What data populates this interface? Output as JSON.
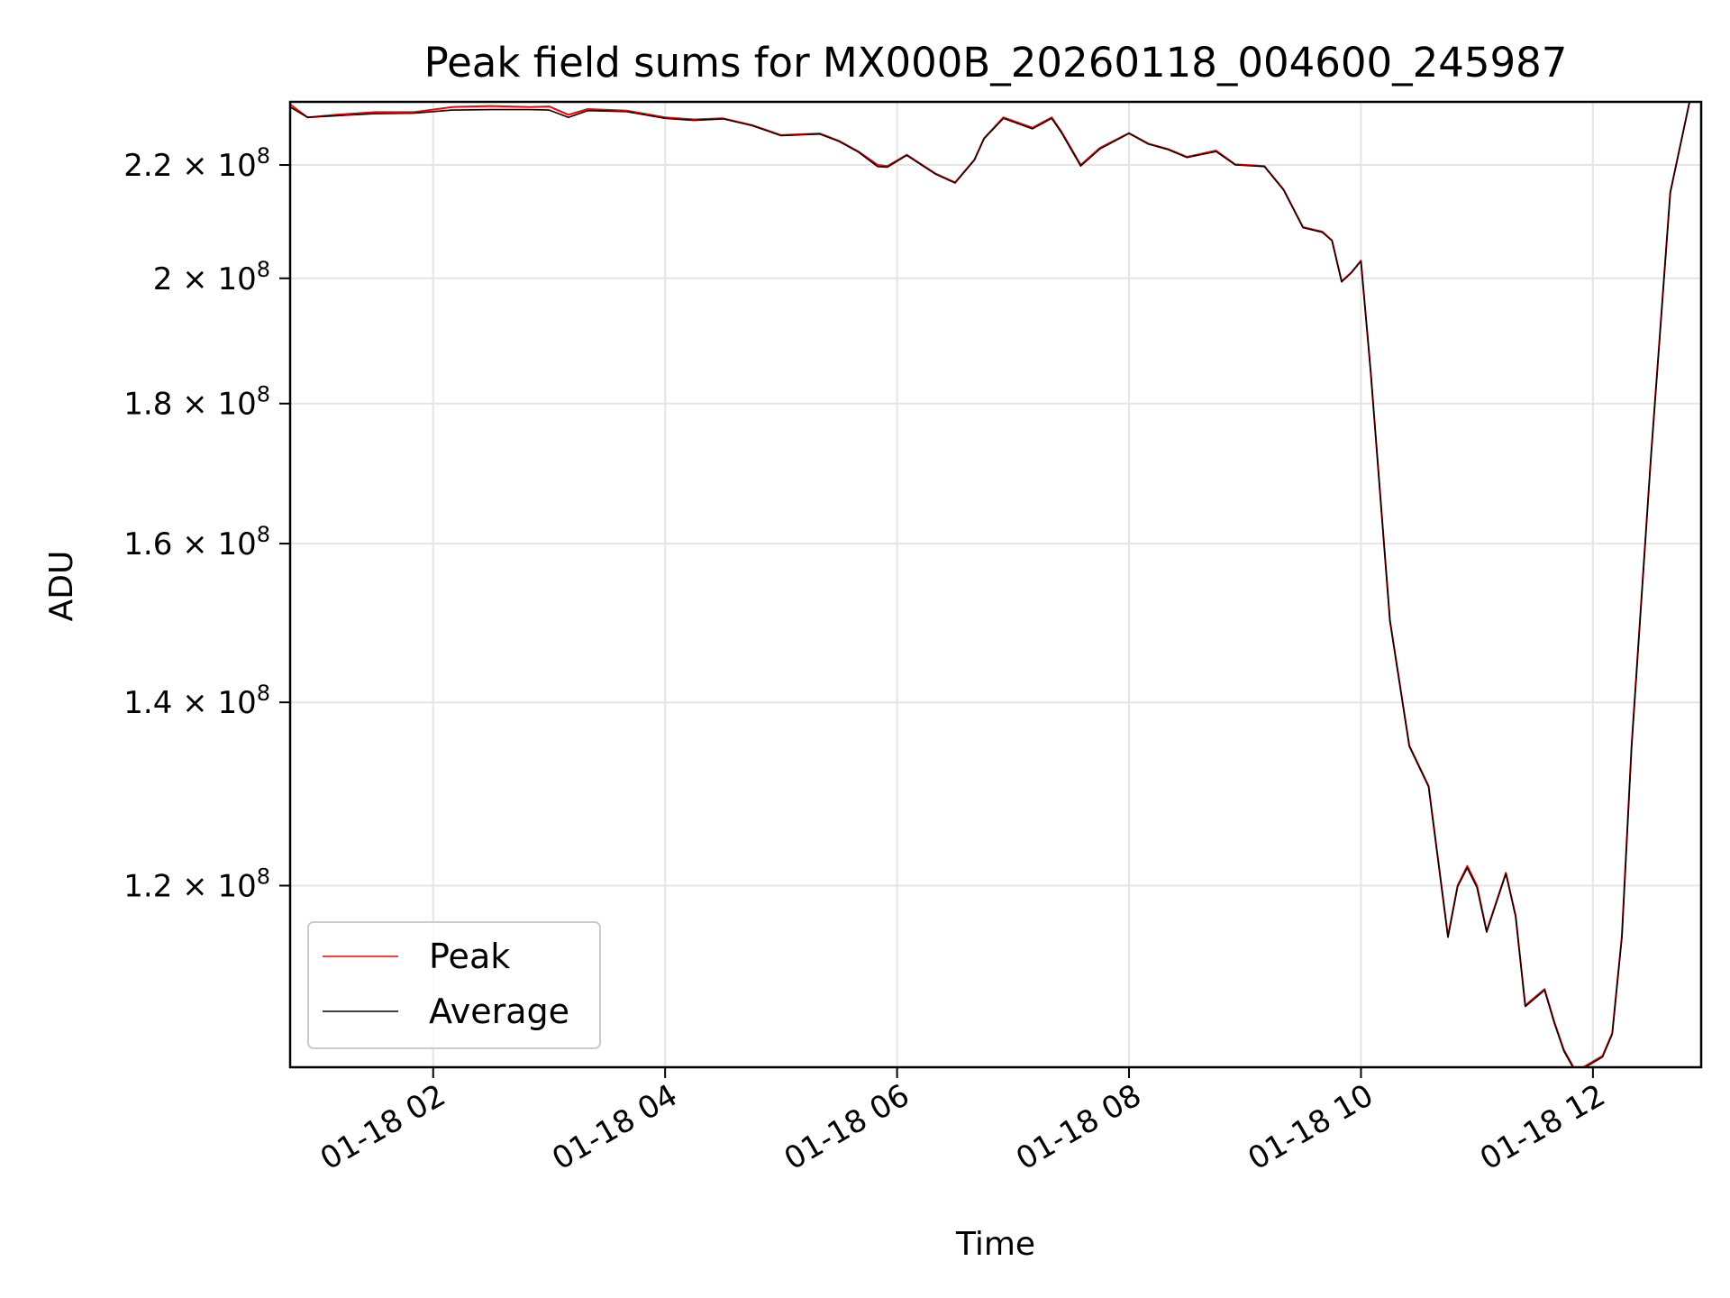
{
  "chart_data": {
    "type": "line",
    "title": "Peak field sums for MX000B_20260118_004600_245987",
    "xlabel": "Time",
    "ylabel": "ADU",
    "y_scale": "log",
    "xlim": [
      "2026-01-18 00:46",
      "2026-01-18 12:56"
    ],
    "ylim": [
      103000000,
      232000000
    ],
    "grid": true,
    "legend_position": "lower-left",
    "x_ticks": [
      {
        "value": "2026-01-18 02:00",
        "label": "01-18 02"
      },
      {
        "value": "2026-01-18 04:00",
        "label": "01-18 04"
      },
      {
        "value": "2026-01-18 06:00",
        "label": "01-18 06"
      },
      {
        "value": "2026-01-18 08:00",
        "label": "01-18 08"
      },
      {
        "value": "2026-01-18 10:00",
        "label": "01-18 10"
      },
      {
        "value": "2026-01-18 12:00",
        "label": "01-18 12"
      }
    ],
    "y_ticks": [
      {
        "value": 120000000,
        "mantissa": "1.2",
        "exp": "8"
      },
      {
        "value": 140000000,
        "mantissa": "1.4",
        "exp": "8"
      },
      {
        "value": 160000000,
        "mantissa": "1.6",
        "exp": "8"
      },
      {
        "value": 180000000,
        "mantissa": "1.8",
        "exp": "8"
      },
      {
        "value": 200000000,
        "mantissa": "2",
        "exp": "8"
      },
      {
        "value": 220000000,
        "mantissa": "2.2",
        "exp": "8"
      }
    ],
    "x": [
      "2026-01-18 00:46",
      "2026-01-18 00:55",
      "2026-01-18 01:10",
      "2026-01-18 01:30",
      "2026-01-18 01:50",
      "2026-01-18 02:10",
      "2026-01-18 02:30",
      "2026-01-18 02:50",
      "2026-01-18 03:00",
      "2026-01-18 03:10",
      "2026-01-18 03:20",
      "2026-01-18 03:40",
      "2026-01-18 04:00",
      "2026-01-18 04:15",
      "2026-01-18 04:30",
      "2026-01-18 04:45",
      "2026-01-18 05:00",
      "2026-01-18 05:20",
      "2026-01-18 05:30",
      "2026-01-18 05:40",
      "2026-01-18 05:50",
      "2026-01-18 05:55",
      "2026-01-18 06:05",
      "2026-01-18 06:20",
      "2026-01-18 06:30",
      "2026-01-18 06:40",
      "2026-01-18 06:45",
      "2026-01-18 06:55",
      "2026-01-18 07:10",
      "2026-01-18 07:20",
      "2026-01-18 07:25",
      "2026-01-18 07:35",
      "2026-01-18 07:45",
      "2026-01-18 08:00",
      "2026-01-18 08:10",
      "2026-01-18 08:20",
      "2026-01-18 08:30",
      "2026-01-18 08:45",
      "2026-01-18 08:55",
      "2026-01-18 09:10",
      "2026-01-18 09:20",
      "2026-01-18 09:30",
      "2026-01-18 09:40",
      "2026-01-18 09:45",
      "2026-01-18 09:50",
      "2026-01-18 09:55",
      "2026-01-18 10:00",
      "2026-01-18 10:05",
      "2026-01-18 10:15",
      "2026-01-18 10:25",
      "2026-01-18 10:35",
      "2026-01-18 10:45",
      "2026-01-18 10:50",
      "2026-01-18 10:55",
      "2026-01-18 11:00",
      "2026-01-18 11:05",
      "2026-01-18 11:15",
      "2026-01-18 11:20",
      "2026-01-18 11:25",
      "2026-01-18 11:35",
      "2026-01-18 11:40",
      "2026-01-18 11:45",
      "2026-01-18 11:50",
      "2026-01-18 11:55",
      "2026-01-18 12:00",
      "2026-01-18 12:05",
      "2026-01-18 12:10",
      "2026-01-18 12:15",
      "2026-01-18 12:20",
      "2026-01-18 12:30",
      "2026-01-18 12:40",
      "2026-01-18 12:50",
      "2026-01-18 12:56"
    ],
    "series": [
      {
        "name": "Peak",
        "color": "#ff0000",
        "values": [
          231500000,
          229000000,
          229500000,
          230000000,
          230000000,
          231000000,
          231200000,
          231000000,
          231100000,
          229500000,
          230600000,
          230300000,
          229000000,
          228600000,
          228800000,
          227500000,
          225600000,
          225900000,
          224500000,
          222500000,
          220000000,
          219800000,
          221900000,
          218400000,
          216800000,
          221000000,
          225000000,
          229000000,
          227000000,
          229000000,
          226300000,
          220000000,
          223200000,
          226000000,
          224000000,
          223000000,
          221500000,
          222700000,
          220100000,
          219800000,
          215500000,
          208800000,
          208000000,
          206500000,
          199500000,
          201000000,
          203000000,
          185000000,
          150000000,
          135000000,
          130500000,
          115000000,
          120000000,
          122000000,
          120000000,
          115500000,
          121300000,
          117000000,
          108500000,
          110000000,
          107000000,
          104500000,
          103000000,
          103000000,
          103500000,
          104000000,
          106000000,
          115000000,
          135000000,
          172000000,
          215000000,
          232000000,
          232000000
        ]
      },
      {
        "name": "Average",
        "color": "#000000",
        "values": [
          231000000,
          229000000,
          229300000,
          229700000,
          229800000,
          230400000,
          230500000,
          230500000,
          230400000,
          229000000,
          230300000,
          230100000,
          228800000,
          228400000,
          228700000,
          227400000,
          225500000,
          225800000,
          224400000,
          222400000,
          219700000,
          219600000,
          221800000,
          218300000,
          216700000,
          220900000,
          224900000,
          228800000,
          226800000,
          228800000,
          226100000,
          219800000,
          223000000,
          225900000,
          223900000,
          222900000,
          221400000,
          222500000,
          220000000,
          219700000,
          215400000,
          208700000,
          207900000,
          206400000,
          199400000,
          200900000,
          202900000,
          184900000,
          149900000,
          134900000,
          130400000,
          114900000,
          119900000,
          121800000,
          119800000,
          115400000,
          121200000,
          116900000,
          108400000,
          109900000,
          106900000,
          104400000,
          102900000,
          102900000,
          103400000,
          103900000,
          105900000,
          114900000,
          134900000,
          171900000,
          214900000,
          232000000,
          232000000
        ]
      }
    ]
  }
}
